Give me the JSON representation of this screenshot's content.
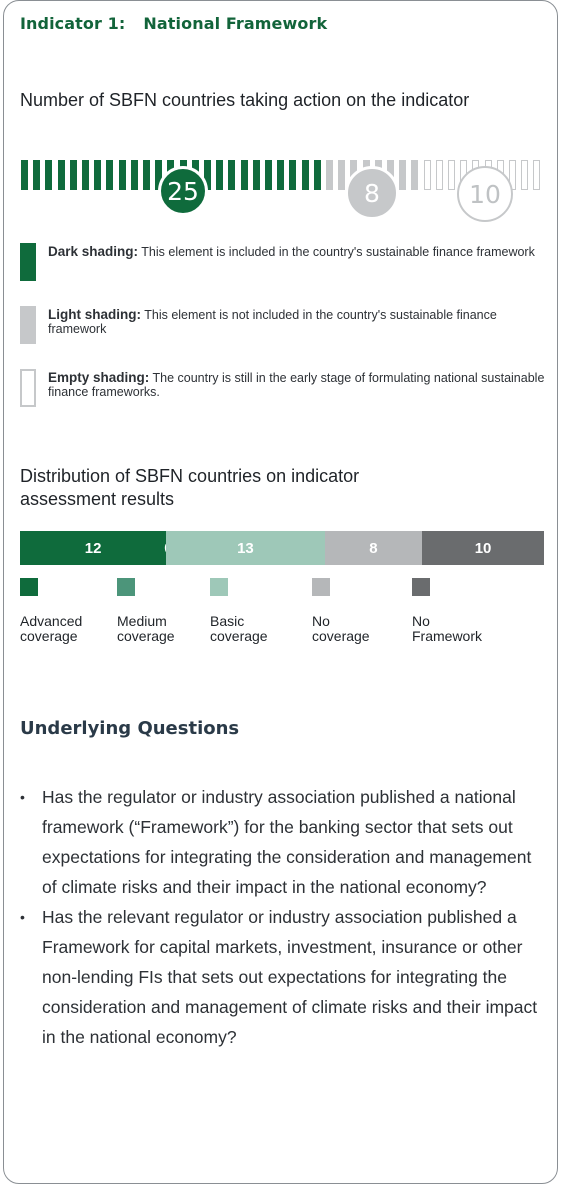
{
  "indicator": {
    "label": "Indicator 1:",
    "name": "National Framework"
  },
  "action_heading": "Number of SBFN countries taking action on the indicator",
  "counts": {
    "dark": 25,
    "light": 8,
    "empty": 10
  },
  "colors": {
    "dark": "#0f6b3c",
    "light": "#c6c8ca",
    "advanced": "#0f6b3c",
    "medium": "#4c957a",
    "basic": "#9ec8b8",
    "no_coverage": "#b5b7b9",
    "no_framework": "#6a6c6e"
  },
  "legend": [
    {
      "title": "Dark shading:",
      "text": "This element is included in the country's sustainable finance framework"
    },
    {
      "title": "Light shading:",
      "text": "This element is not included in the country's sustainable finance framework"
    },
    {
      "title": "Empty shading:",
      "text": "The country is still in the early stage of formulating national sustainable finance frameworks."
    }
  ],
  "distribution_heading": "Distribution of SBFN countries on indicator assessment results",
  "chart_data": {
    "type": "bar",
    "orientation": "horizontal-stacked",
    "categories": [
      "Advanced coverage",
      "Medium coverage",
      "Basic coverage",
      "No coverage",
      "No Framework"
    ],
    "values": [
      12,
      0,
      13,
      8,
      10
    ],
    "colors": [
      "#0f6b3c",
      "#4c957a",
      "#9ec8b8",
      "#b5b7b9",
      "#6a6c6e"
    ]
  },
  "distribution_labels": [
    [
      "Advanced",
      "coverage"
    ],
    [
      "Medium",
      "coverage"
    ],
    [
      "Basic",
      "coverage"
    ],
    [
      "No",
      "coverage"
    ],
    [
      "No",
      "Framework"
    ]
  ],
  "underlying_heading": "Underlying Questions",
  "questions": [
    "Has the regulator or industry association published a national framework (“Framework”) for the banking sector that sets out expectations for integrating the consideration and management of climate risks and their impact in the national economy?",
    "Has the relevant regulator or industry association published a Framework for capital markets, investment, insurance or other non-lending FIs that sets out expectations for integrating the consideration and management of climate risks and their impact in the national economy?"
  ]
}
